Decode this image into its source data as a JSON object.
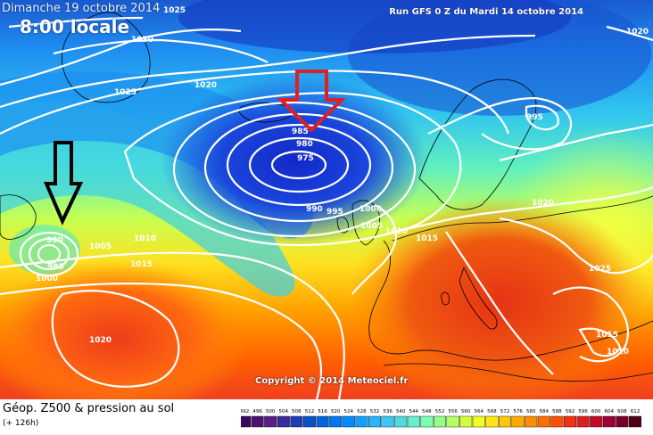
{
  "header": {
    "date": "Dimanche 19 octobre 2014",
    "time": "8:00 locale",
    "run": "Run GFS 0 Z du Mardi 14 octobre 2014"
  },
  "copyright": "Copyright © 2014 Meteociel.fr",
  "footer": {
    "title": "Géop. Z500 & pression au sol",
    "subtitle": "(+ 126h)"
  },
  "scale": {
    "labels": [
      "492",
      "496",
      "500",
      "504",
      "508",
      "512",
      "516",
      "520",
      "524",
      "528",
      "532",
      "536",
      "540",
      "544",
      "548",
      "552",
      "556",
      "560",
      "564",
      "568",
      "572",
      "576",
      "580",
      "584",
      "588",
      "592",
      "596",
      "600",
      "604",
      "608",
      "612"
    ],
    "colors": [
      "#3a0a5a",
      "#4a1470",
      "#5a1e88",
      "#3a2c9c",
      "#1e3cb4",
      "#0a50c8",
      "#0064dc",
      "#0078f0",
      "#008cff",
      "#14a0ff",
      "#28b4ff",
      "#3cc8f0",
      "#50dcdc",
      "#64f0c8",
      "#78ffb4",
      "#96ff8c",
      "#b4ff64",
      "#d2ff3c",
      "#f0ff1e",
      "#ffe614",
      "#ffc80a",
      "#ffaa00",
      "#ff8c00",
      "#ff6e00",
      "#ff5000",
      "#f03214",
      "#dc1e1e",
      "#c80a28",
      "#a00032",
      "#780028",
      "#500014"
    ]
  },
  "pressure_labels": [
    {
      "text": "1025"
    },
    {
      "text": "1030"
    },
    {
      "text": "1025"
    },
    {
      "text": "1020"
    },
    {
      "text": "985"
    },
    {
      "text": "980"
    },
    {
      "text": "975"
    },
    {
      "text": "990"
    },
    {
      "text": "995"
    },
    {
      "text": "1000"
    },
    {
      "text": "1005"
    },
    {
      "text": "1010"
    },
    {
      "text": "1015"
    },
    {
      "text": "995"
    },
    {
      "text": "1020"
    },
    {
      "text": "1020"
    },
    {
      "text": "990"
    },
    {
      "text": "985"
    },
    {
      "text": "1000"
    },
    {
      "text": "1005"
    },
    {
      "text": "1010"
    },
    {
      "text": "1015"
    },
    {
      "text": "1020"
    },
    {
      "text": "1025"
    },
    {
      "text": "1015"
    },
    {
      "text": "1010"
    }
  ],
  "arrows": {
    "red_color": "#e02020",
    "black_color": "#000000"
  }
}
